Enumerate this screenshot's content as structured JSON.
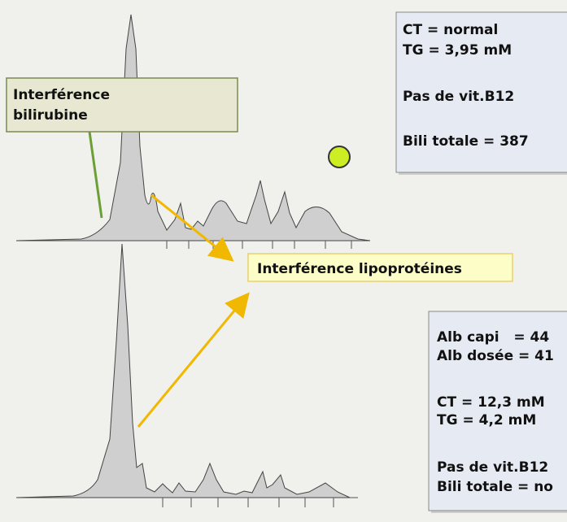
{
  "info_box": {
    "lines": [
      "CT = normal",
      "TG = 3,95 mM",
      "Pas de vit.B12",
      "Bili totale = 387"
    ]
  },
  "bilirubin_label": {
    "lines": [
      "Interférence",
      "bilirubine"
    ]
  },
  "lipoprotein_label": "Interférence lipoprotéines",
  "info_box_2": {
    "lines": [
      "Alb capi   = 44",
      "Alb dosée = 41",
      "CT = 12,3 mM",
      "TG = 4,2 mM",
      "Pas de vit.B12",
      "Bili totale = no"
    ]
  }
}
